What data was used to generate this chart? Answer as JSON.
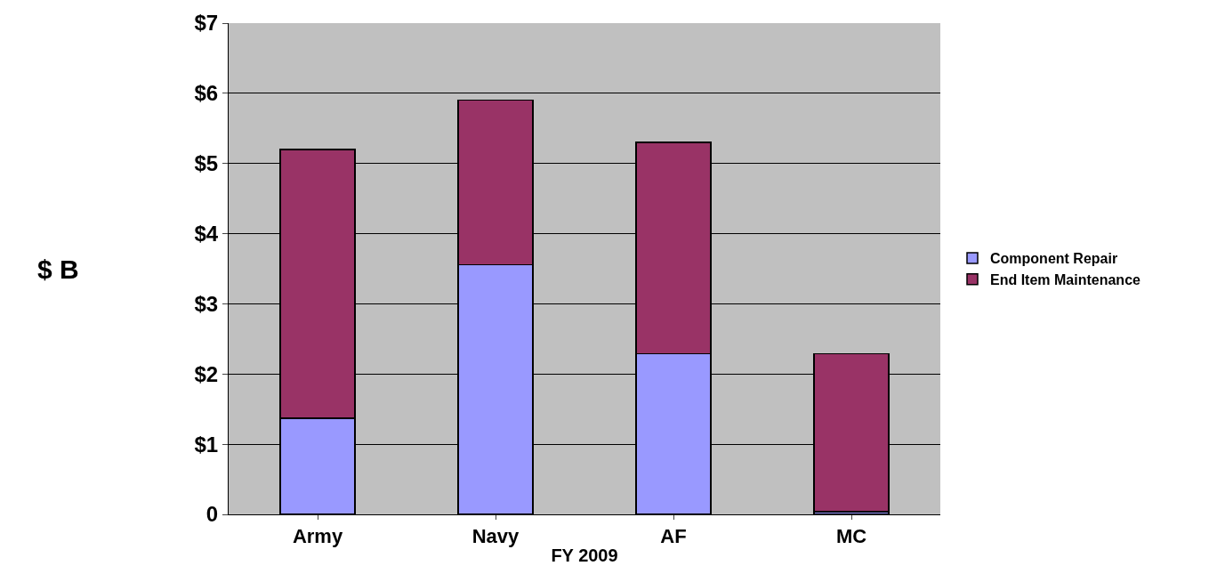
{
  "chart_data": {
    "type": "bar",
    "stacked": true,
    "xlabel": "FY 2009",
    "ylabel": "$ B",
    "categories": [
      "Army",
      "Navy",
      "AF",
      "MC"
    ],
    "series": [
      {
        "name": "Component Repair",
        "color": "#9999ff",
        "values": [
          1.37,
          3.56,
          2.29,
          0.04
        ]
      },
      {
        "name": "End Item Maintenance",
        "color": "#993366",
        "values": [
          3.83,
          2.34,
          3.01,
          2.25
        ]
      }
    ],
    "ylim": [
      0,
      7
    ],
    "yticks": [
      0,
      {
        "value": 1,
        "label": "$1"
      },
      {
        "value": 2,
        "label": "$2"
      },
      {
        "value": 3,
        "label": "$3"
      },
      {
        "value": 4,
        "label": "$4"
      },
      {
        "value": 5,
        "label": "$5"
      },
      {
        "value": 6,
        "label": "$6"
      },
      {
        "value": 7,
        "label": "$7"
      }
    ],
    "grid": "y",
    "legend": "right"
  }
}
